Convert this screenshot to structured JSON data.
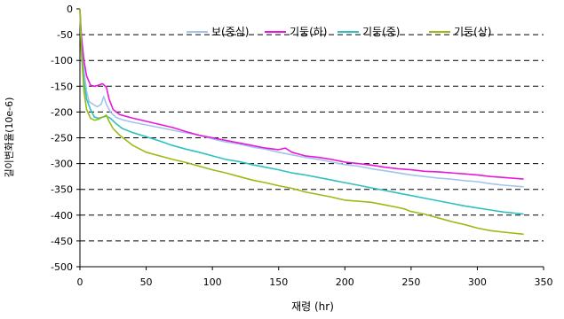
{
  "chart_data": {
    "type": "line",
    "xlabel": "재령 (hr)",
    "ylabel": "길이변화율(10e-6)",
    "xlim": [
      0,
      350
    ],
    "ylim": [
      -500,
      0
    ],
    "xticks": [
      0,
      50,
      100,
      150,
      200,
      250,
      300,
      350
    ],
    "yticks": [
      0,
      -50,
      -100,
      -150,
      -200,
      -250,
      -300,
      -350,
      -400,
      -450,
      -500
    ],
    "grid": "horizontal-dashed",
    "legend": "top",
    "series": [
      {
        "name": "보(중심)",
        "color": "#a0c4ec",
        "points": [
          [
            0,
            0
          ],
          [
            1,
            -60
          ],
          [
            3,
            -120
          ],
          [
            5,
            -160
          ],
          [
            7,
            -180
          ],
          [
            10,
            -185
          ],
          [
            13,
            -190
          ],
          [
            16,
            -185
          ],
          [
            18,
            -170
          ],
          [
            20,
            -185
          ],
          [
            23,
            -200
          ],
          [
            27,
            -210
          ],
          [
            32,
            -215
          ],
          [
            40,
            -220
          ],
          [
            50,
            -225
          ],
          [
            60,
            -230
          ],
          [
            75,
            -238
          ],
          [
            90,
            -245
          ],
          [
            100,
            -252
          ],
          [
            110,
            -258
          ],
          [
            120,
            -262
          ],
          [
            130,
            -268
          ],
          [
            140,
            -272
          ],
          [
            150,
            -278
          ],
          [
            160,
            -283
          ],
          [
            170,
            -288
          ],
          [
            180,
            -292
          ],
          [
            190,
            -297
          ],
          [
            200,
            -302
          ],
          [
            210,
            -305
          ],
          [
            220,
            -310
          ],
          [
            230,
            -314
          ],
          [
            240,
            -318
          ],
          [
            250,
            -322
          ],
          [
            260,
            -325
          ],
          [
            270,
            -328
          ],
          [
            280,
            -330
          ],
          [
            290,
            -333
          ],
          [
            300,
            -335
          ],
          [
            310,
            -339
          ],
          [
            320,
            -342
          ],
          [
            335,
            -345
          ]
        ]
      },
      {
        "name": "기둥(하)",
        "color": "#e818d8",
        "points": [
          [
            0,
            0
          ],
          [
            1,
            -50
          ],
          [
            3,
            -100
          ],
          [
            5,
            -130
          ],
          [
            8,
            -148
          ],
          [
            11,
            -150
          ],
          [
            14,
            -148
          ],
          [
            17,
            -145
          ],
          [
            20,
            -152
          ],
          [
            22,
            -175
          ],
          [
            25,
            -195
          ],
          [
            30,
            -205
          ],
          [
            40,
            -212
          ],
          [
            50,
            -218
          ],
          [
            60,
            -224
          ],
          [
            70,
            -230
          ],
          [
            80,
            -238
          ],
          [
            90,
            -245
          ],
          [
            100,
            -250
          ],
          [
            110,
            -255
          ],
          [
            120,
            -260
          ],
          [
            130,
            -265
          ],
          [
            140,
            -270
          ],
          [
            150,
            -273
          ],
          [
            155,
            -270
          ],
          [
            160,
            -278
          ],
          [
            170,
            -285
          ],
          [
            180,
            -288
          ],
          [
            190,
            -292
          ],
          [
            200,
            -297
          ],
          [
            210,
            -300
          ],
          [
            220,
            -303
          ],
          [
            230,
            -307
          ],
          [
            240,
            -310
          ],
          [
            250,
            -312
          ],
          [
            260,
            -315
          ],
          [
            270,
            -316
          ],
          [
            280,
            -318
          ],
          [
            290,
            -320
          ],
          [
            300,
            -322
          ],
          [
            310,
            -325
          ],
          [
            320,
            -327
          ],
          [
            335,
            -330
          ]
        ]
      },
      {
        "name": "기둥(중)",
        "color": "#30c0c0",
        "points": [
          [
            0,
            0
          ],
          [
            1,
            -70
          ],
          [
            3,
            -140
          ],
          [
            5,
            -175
          ],
          [
            8,
            -195
          ],
          [
            11,
            -210
          ],
          [
            14,
            -212
          ],
          [
            17,
            -210
          ],
          [
            20,
            -208
          ],
          [
            23,
            -212
          ],
          [
            27,
            -222
          ],
          [
            32,
            -232
          ],
          [
            40,
            -240
          ],
          [
            50,
            -248
          ],
          [
            60,
            -256
          ],
          [
            70,
            -265
          ],
          [
            80,
            -272
          ],
          [
            90,
            -278
          ],
          [
            100,
            -285
          ],
          [
            110,
            -292
          ],
          [
            120,
            -296
          ],
          [
            130,
            -302
          ],
          [
            140,
            -307
          ],
          [
            150,
            -312
          ],
          [
            160,
            -318
          ],
          [
            170,
            -322
          ],
          [
            180,
            -327
          ],
          [
            190,
            -332
          ],
          [
            200,
            -337
          ],
          [
            210,
            -342
          ],
          [
            220,
            -347
          ],
          [
            230,
            -352
          ],
          [
            240,
            -357
          ],
          [
            250,
            -362
          ],
          [
            260,
            -367
          ],
          [
            270,
            -372
          ],
          [
            280,
            -377
          ],
          [
            290,
            -382
          ],
          [
            300,
            -386
          ],
          [
            310,
            -390
          ],
          [
            320,
            -394
          ],
          [
            335,
            -398
          ]
        ]
      },
      {
        "name": "기둥(상)",
        "color": "#98bc14",
        "points": [
          [
            0,
            0
          ],
          [
            1,
            -80
          ],
          [
            3,
            -160
          ],
          [
            5,
            -195
          ],
          [
            8,
            -212
          ],
          [
            11,
            -216
          ],
          [
            14,
            -214
          ],
          [
            17,
            -210
          ],
          [
            20,
            -206
          ],
          [
            22,
            -218
          ],
          [
            25,
            -232
          ],
          [
            30,
            -245
          ],
          [
            35,
            -255
          ],
          [
            40,
            -265
          ],
          [
            50,
            -278
          ],
          [
            60,
            -285
          ],
          [
            70,
            -292
          ],
          [
            80,
            -298
          ],
          [
            90,
            -305
          ],
          [
            100,
            -312
          ],
          [
            110,
            -318
          ],
          [
            120,
            -325
          ],
          [
            130,
            -332
          ],
          [
            140,
            -337
          ],
          [
            150,
            -343
          ],
          [
            160,
            -348
          ],
          [
            170,
            -355
          ],
          [
            180,
            -360
          ],
          [
            190,
            -365
          ],
          [
            200,
            -371
          ],
          [
            210,
            -373
          ],
          [
            220,
            -375
          ],
          [
            230,
            -380
          ],
          [
            240,
            -385
          ],
          [
            245,
            -388
          ],
          [
            250,
            -393
          ],
          [
            260,
            -398
          ],
          [
            270,
            -405
          ],
          [
            280,
            -412
          ],
          [
            290,
            -418
          ],
          [
            300,
            -425
          ],
          [
            310,
            -430
          ],
          [
            320,
            -433
          ],
          [
            335,
            -437
          ]
        ]
      }
    ]
  }
}
